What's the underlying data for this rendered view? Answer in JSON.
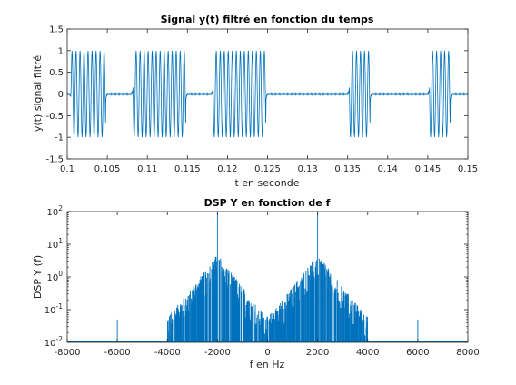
{
  "chart_data": [
    {
      "type": "line",
      "title": "Signal y(t) filtré en fonction du temps",
      "xlabel": "t en seconde",
      "ylabel": "y(t) signal filtré",
      "xlim": [
        0.1,
        0.15
      ],
      "ylim": [
        -1.5,
        1.5
      ],
      "x_ticks": [
        "0.1",
        "0.105",
        "0.11",
        "0.115",
        "0.12",
        "0.125",
        "0.13",
        "0.135",
        "0.14",
        "0.145",
        "0.15"
      ],
      "y_ticks": [
        "-1.5",
        "-1",
        "-0.5",
        "0",
        "0.5",
        "1",
        "1.5"
      ],
      "series": [
        {
          "color": "#0072bd",
          "carrier_hz": 2000,
          "amplitude": 1,
          "bursts": [
            [
              0.1005,
              0.1048
            ],
            [
              0.1082,
              0.1148
            ],
            [
              0.1182,
              0.1248
            ],
            [
              0.1352,
              0.1378
            ],
            [
              0.1452,
              0.1478
            ]
          ]
        }
      ],
      "grid": false,
      "legend": "none"
    },
    {
      "type": "line",
      "title": "DSP Y en fonction de f",
      "xlabel": "f en Hz",
      "ylabel": "DSP Y (f)",
      "xlim": [
        -8000,
        8000
      ],
      "ylim": [
        0.01,
        100
      ],
      "yscale": "log",
      "x_ticks": [
        "-8000",
        "-6000",
        "-4000",
        "-2000",
        "0",
        "2000",
        "4000",
        "6000",
        "8000"
      ],
      "y_ticks_exp": [
        "-2",
        "-1",
        "0",
        "1",
        "2"
      ],
      "series": [
        {
          "color": "#0072bd",
          "peaks": [
            {
              "f": -2000,
              "value": 100
            },
            {
              "f": 2000,
              "value": 100
            },
            {
              "f": -6000,
              "value": 0.05
            },
            {
              "f": 6000,
              "value": 0.05
            }
          ],
          "band_hz": [
            -4000,
            4000
          ]
        }
      ],
      "grid": false,
      "legend": "none"
    }
  ]
}
